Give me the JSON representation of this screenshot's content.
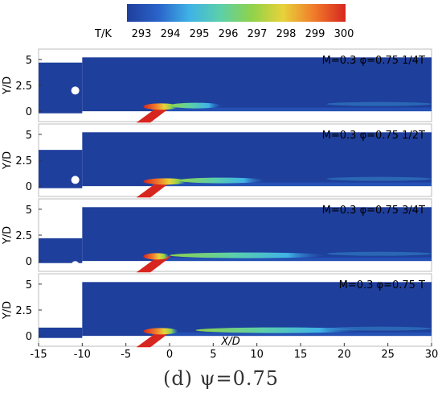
{
  "figure": {
    "caption": "(d) ψ=0.75"
  },
  "colorbar": {
    "label": "T/K",
    "ticks": [
      "293",
      "294",
      "295",
      "296",
      "297",
      "298",
      "299",
      "300"
    ],
    "min": 293,
    "max": 300,
    "colors": [
      "#1f3f9c",
      "#2a63c9",
      "#3fb3e6",
      "#5cd0a8",
      "#8fd24a",
      "#e8d23a",
      "#f07b2a",
      "#d7261f"
    ]
  },
  "chart_data": [
    {
      "type": "heatmap",
      "panel_label": "M=0.3  φ=0.75  1/4T",
      "ylabel": "Y/D",
      "yticks": [
        "5",
        "2.5",
        "0"
      ],
      "x_range": [
        -15,
        30
      ],
      "y_range": [
        -1,
        6
      ],
      "piston_height": 4.7,
      "hole_center": [
        -10.8,
        2.0
      ],
      "background_temperature": 293,
      "features": [
        {
          "name": "hot jet",
          "x_range": [
            -3,
            1
          ],
          "peak_temperature": 300
        },
        {
          "name": "warm trail",
          "x_range": [
            0,
            6
          ],
          "peak_temperature": 296
        }
      ]
    },
    {
      "type": "heatmap",
      "panel_label": "M=0.3  φ=0.75  1/2T",
      "ylabel": "Y/D",
      "yticks": [
        "5",
        "2.5",
        "0"
      ],
      "x_range": [
        -15,
        30
      ],
      "y_range": [
        -1,
        6
      ],
      "piston_height": 3.5,
      "hole_center": [
        -10.8,
        0.6
      ],
      "background_temperature": 293,
      "features": [
        {
          "name": "hot jet",
          "x_range": [
            -3,
            2
          ],
          "peak_temperature": 300
        },
        {
          "name": "warm trail",
          "x_range": [
            1,
            11
          ],
          "peak_temperature": 297
        }
      ]
    },
    {
      "type": "heatmap",
      "panel_label": "M=0.3  φ=0.75  3/4T",
      "ylabel": "Y/D",
      "yticks": [
        "5",
        "2.5",
        "0"
      ],
      "x_range": [
        -15,
        30
      ],
      "y_range": [
        -1,
        6
      ],
      "piston_height": 2.2,
      "hole_center": [
        -10.8,
        -0.4
      ],
      "background_temperature": 293,
      "features": [
        {
          "name": "hot jet",
          "x_range": [
            -3,
            0
          ],
          "peak_temperature": 300
        },
        {
          "name": "warm trail",
          "x_range": [
            0,
            18
          ],
          "peak_temperature": 296
        }
      ]
    },
    {
      "type": "heatmap",
      "panel_label": "M=0.3  φ=0.75    T",
      "ylabel": "Y/D",
      "xlabel": "X/D",
      "yticks": [
        "5",
        "2.5",
        "0"
      ],
      "xticks": [
        "-15",
        "-10",
        "-5",
        "0",
        "5",
        "10",
        "15",
        "20",
        "25",
        "30"
      ],
      "x_range": [
        -15,
        30
      ],
      "y_range": [
        -1,
        6
      ],
      "piston_height": 0.8,
      "hole_center": null,
      "background_temperature": 293,
      "features": [
        {
          "name": "hot jet",
          "x_range": [
            -3,
            1
          ],
          "peak_temperature": 300
        },
        {
          "name": "warm trail",
          "x_range": [
            3,
            22
          ],
          "peak_temperature": 296
        }
      ]
    }
  ]
}
